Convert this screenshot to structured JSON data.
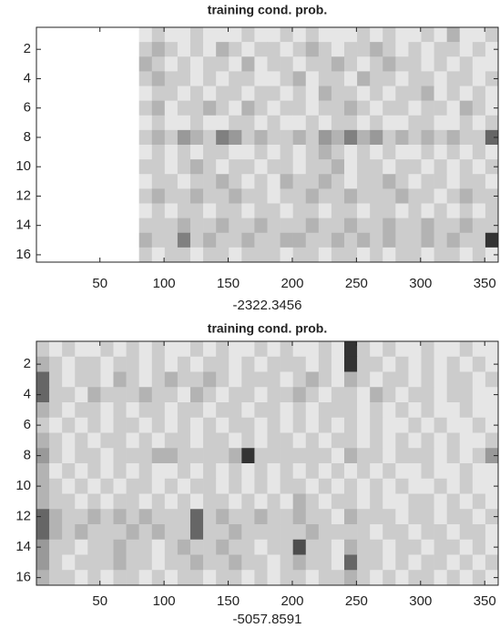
{
  "chart_data": [
    {
      "type": "heatmap",
      "title": "training cond. prob.",
      "xlabel": "-2322.3456",
      "xbins": [
        0.5,
        10.5,
        20.5,
        30.5,
        40.5,
        50.5,
        60.5,
        70.5,
        80.5,
        90.5,
        100.5,
        110.5,
        120.5,
        130.5,
        140.5,
        150.5,
        160.5,
        170.5,
        180.5,
        190.5,
        200.5,
        210.5,
        220.5,
        230.5,
        240.5,
        250.5,
        260.5,
        270.5,
        280.5,
        290.5,
        300.5,
        310.5,
        320.5,
        330.5,
        340.5,
        350.5,
        360.5
      ],
      "y": [
        1,
        2,
        3,
        4,
        5,
        6,
        7,
        8,
        9,
        10,
        11,
        12,
        13,
        14,
        15,
        16
      ],
      "xlim": [
        0.5,
        360.5
      ],
      "ylim": [
        0.5,
        16.5
      ],
      "clim": [
        0,
        10
      ],
      "xticks": [
        50,
        100,
        150,
        200,
        250,
        300,
        350
      ],
      "yticks": [
        2,
        4,
        6,
        8,
        10,
        12,
        14,
        16
      ],
      "values": [
        [
          0,
          0,
          0,
          0,
          0,
          0,
          0,
          0,
          1,
          2,
          1,
          1,
          2,
          1,
          1,
          1,
          2,
          1,
          1,
          2,
          1,
          2,
          1,
          1,
          1,
          2,
          1,
          2,
          1,
          1,
          2,
          1,
          3,
          1,
          1,
          2
        ],
        [
          0,
          0,
          0,
          0,
          0,
          0,
          0,
          0,
          2,
          3,
          2,
          1,
          2,
          1,
          3,
          2,
          1,
          2,
          2,
          1,
          2,
          3,
          2,
          1,
          2,
          2,
          3,
          2,
          1,
          2,
          1,
          2,
          2,
          1,
          2,
          1
        ],
        [
          0,
          0,
          0,
          0,
          0,
          0,
          0,
          0,
          3,
          2,
          1,
          2,
          1,
          2,
          2,
          1,
          3,
          1,
          2,
          2,
          1,
          2,
          2,
          3,
          2,
          1,
          2,
          3,
          2,
          2,
          1,
          2,
          1,
          2,
          1,
          1
        ],
        [
          0,
          0,
          0,
          0,
          0,
          0,
          0,
          0,
          2,
          3,
          2,
          2,
          1,
          2,
          1,
          2,
          2,
          1,
          1,
          2,
          3,
          1,
          2,
          2,
          1,
          3,
          2,
          2,
          1,
          2,
          2,
          1,
          2,
          2,
          1,
          2
        ],
        [
          0,
          0,
          0,
          0,
          0,
          0,
          0,
          0,
          1,
          2,
          2,
          1,
          2,
          1,
          2,
          2,
          1,
          2,
          2,
          1,
          2,
          1,
          3,
          2,
          2,
          1,
          2,
          1,
          2,
          2,
          3,
          1,
          2,
          1,
          2,
          1
        ],
        [
          0,
          0,
          0,
          0,
          0,
          0,
          0,
          0,
          2,
          3,
          1,
          2,
          2,
          3,
          2,
          1,
          3,
          2,
          1,
          2,
          2,
          1,
          2,
          2,
          3,
          2,
          1,
          2,
          2,
          1,
          2,
          2,
          1,
          3,
          2,
          1
        ],
        [
          0,
          0,
          0,
          0,
          0,
          0,
          0,
          0,
          1,
          2,
          1,
          1,
          2,
          1,
          1,
          2,
          2,
          1,
          2,
          1,
          1,
          2,
          1,
          2,
          2,
          1,
          2,
          1,
          1,
          2,
          2,
          1,
          1,
          2,
          1,
          2
        ],
        [
          0,
          0,
          0,
          0,
          0,
          0,
          0,
          0,
          2,
          3,
          2,
          4,
          3,
          2,
          5,
          4,
          2,
          3,
          2,
          2,
          3,
          2,
          4,
          3,
          5,
          3,
          4,
          2,
          3,
          2,
          3,
          2,
          3,
          2,
          2,
          6
        ],
        [
          0,
          0,
          0,
          0,
          0,
          0,
          0,
          0,
          1,
          2,
          1,
          2,
          1,
          2,
          2,
          1,
          1,
          2,
          1,
          2,
          1,
          2,
          3,
          2,
          1,
          2,
          1,
          2,
          1,
          1,
          2,
          1,
          2,
          1,
          2,
          1
        ],
        [
          0,
          0,
          0,
          0,
          0,
          0,
          0,
          0,
          2,
          2,
          1,
          2,
          3,
          2,
          1,
          2,
          2,
          1,
          2,
          2,
          1,
          2,
          2,
          3,
          1,
          2,
          2,
          1,
          2,
          2,
          1,
          2,
          1,
          2,
          1,
          2
        ],
        [
          0,
          0,
          0,
          0,
          0,
          0,
          0,
          0,
          1,
          2,
          2,
          1,
          2,
          2,
          3,
          2,
          1,
          2,
          1,
          3,
          2,
          2,
          3,
          2,
          1,
          2,
          2,
          3,
          2,
          1,
          2,
          2,
          1,
          2,
          2,
          1
        ],
        [
          0,
          0,
          0,
          0,
          0,
          0,
          0,
          0,
          2,
          3,
          2,
          2,
          3,
          2,
          2,
          3,
          2,
          2,
          1,
          2,
          2,
          3,
          2,
          2,
          3,
          2,
          2,
          2,
          3,
          2,
          2,
          1,
          2,
          3,
          2,
          2
        ],
        [
          0,
          0,
          0,
          0,
          0,
          0,
          0,
          0,
          1,
          2,
          1,
          2,
          2,
          1,
          2,
          2,
          1,
          2,
          2,
          1,
          2,
          2,
          1,
          2,
          2,
          1,
          2,
          2,
          1,
          2,
          1,
          2,
          1,
          2,
          1,
          2
        ],
        [
          0,
          0,
          0,
          0,
          0,
          0,
          0,
          0,
          2,
          2,
          2,
          3,
          2,
          2,
          3,
          2,
          2,
          3,
          2,
          2,
          2,
          3,
          2,
          2,
          3,
          2,
          2,
          3,
          2,
          2,
          3,
          2,
          2,
          3,
          2,
          2
        ],
        [
          0,
          0,
          0,
          0,
          0,
          0,
          0,
          0,
          3,
          2,
          2,
          5,
          2,
          3,
          2,
          2,
          3,
          2,
          2,
          3,
          3,
          2,
          2,
          3,
          2,
          3,
          2,
          3,
          2,
          2,
          3,
          2,
          3,
          2,
          2,
          8
        ],
        [
          0,
          0,
          0,
          0,
          0,
          0,
          0,
          0,
          2,
          1,
          2,
          2,
          1,
          2,
          2,
          1,
          2,
          2,
          2,
          1,
          2,
          2,
          1,
          2,
          2,
          1,
          2,
          1,
          2,
          2,
          1,
          2,
          2,
          1,
          2,
          1
        ]
      ]
    },
    {
      "type": "heatmap",
      "title": "training cond. prob.",
      "xlabel": "-5057.8591",
      "xbins": [
        0.5,
        10.5,
        20.5,
        30.5,
        40.5,
        50.5,
        60.5,
        70.5,
        80.5,
        90.5,
        100.5,
        110.5,
        120.5,
        130.5,
        140.5,
        150.5,
        160.5,
        170.5,
        180.5,
        190.5,
        200.5,
        210.5,
        220.5,
        230.5,
        240.5,
        250.5,
        260.5,
        270.5,
        280.5,
        290.5,
        300.5,
        310.5,
        320.5,
        330.5,
        340.5,
        350.5,
        360.5
      ],
      "y": [
        1,
        2,
        3,
        4,
        5,
        6,
        7,
        8,
        9,
        10,
        11,
        12,
        13,
        14,
        15,
        16
      ],
      "xlim": [
        0.5,
        360.5
      ],
      "ylim": [
        0.5,
        16.5
      ],
      "clim": [
        0,
        10
      ],
      "xticks": [
        50,
        100,
        150,
        200,
        250,
        300,
        350
      ],
      "yticks": [
        2,
        4,
        6,
        8,
        10,
        12,
        14,
        16
      ],
      "values": [
        [
          2,
          1,
          2,
          1,
          1,
          2,
          1,
          2,
          1,
          2,
          1,
          1,
          2,
          1,
          2,
          1,
          1,
          2,
          1,
          2,
          1,
          1,
          2,
          1,
          8,
          2,
          1,
          2,
          1,
          1,
          2,
          1,
          1,
          2,
          1,
          1
        ],
        [
          3,
          2,
          1,
          2,
          2,
          1,
          2,
          2,
          1,
          2,
          1,
          2,
          1,
          2,
          2,
          1,
          2,
          1,
          2,
          2,
          2,
          1,
          2,
          1,
          8,
          2,
          2,
          1,
          2,
          1,
          2,
          1,
          2,
          1,
          2,
          1
        ],
        [
          6,
          2,
          1,
          2,
          2,
          1,
          3,
          2,
          1,
          2,
          3,
          2,
          2,
          3,
          2,
          1,
          2,
          2,
          2,
          1,
          2,
          3,
          2,
          1,
          3,
          2,
          1,
          2,
          2,
          1,
          2,
          1,
          2,
          2,
          1,
          2
        ],
        [
          6,
          2,
          2,
          1,
          3,
          2,
          2,
          2,
          3,
          2,
          2,
          1,
          3,
          2,
          1,
          2,
          2,
          1,
          2,
          2,
          3,
          2,
          1,
          2,
          2,
          1,
          3,
          2,
          1,
          2,
          2,
          1,
          2,
          2,
          1,
          1
        ],
        [
          3,
          2,
          1,
          2,
          2,
          1,
          2,
          1,
          2,
          2,
          1,
          2,
          2,
          1,
          2,
          2,
          1,
          2,
          2,
          1,
          2,
          1,
          2,
          2,
          2,
          1,
          2,
          1,
          2,
          1,
          2,
          1,
          1,
          2,
          1,
          1
        ],
        [
          2,
          1,
          2,
          1,
          2,
          1,
          2,
          2,
          1,
          2,
          1,
          2,
          1,
          2,
          1,
          2,
          2,
          1,
          2,
          1,
          2,
          1,
          2,
          1,
          2,
          1,
          2,
          1,
          1,
          2,
          1,
          2,
          1,
          1,
          2,
          1
        ],
        [
          3,
          2,
          1,
          2,
          1,
          2,
          2,
          1,
          2,
          1,
          2,
          2,
          1,
          2,
          2,
          1,
          2,
          1,
          2,
          2,
          1,
          2,
          1,
          2,
          2,
          1,
          2,
          1,
          2,
          1,
          2,
          1,
          2,
          1,
          1,
          2
        ],
        [
          4,
          2,
          1,
          2,
          2,
          1,
          2,
          2,
          2,
          3,
          3,
          2,
          2,
          2,
          2,
          3,
          8,
          2,
          2,
          2,
          2,
          2,
          2,
          1,
          3,
          2,
          2,
          1,
          2,
          2,
          2,
          1,
          2,
          1,
          2,
          4
        ],
        [
          3,
          1,
          2,
          1,
          2,
          1,
          2,
          1,
          2,
          1,
          1,
          2,
          1,
          2,
          1,
          2,
          1,
          2,
          1,
          2,
          1,
          2,
          1,
          2,
          1,
          2,
          1,
          2,
          1,
          1,
          2,
          1,
          1,
          2,
          1,
          1
        ],
        [
          3,
          2,
          1,
          2,
          1,
          2,
          1,
          2,
          2,
          1,
          2,
          1,
          2,
          2,
          1,
          2,
          1,
          2,
          1,
          2,
          2,
          1,
          2,
          1,
          2,
          1,
          2,
          1,
          2,
          1,
          1,
          2,
          1,
          2,
          1,
          1
        ],
        [
          3,
          2,
          2,
          1,
          2,
          1,
          2,
          2,
          1,
          2,
          1,
          2,
          1,
          2,
          2,
          1,
          2,
          1,
          2,
          1,
          3,
          2,
          1,
          2,
          2,
          1,
          2,
          1,
          1,
          2,
          2,
          1,
          2,
          1,
          2,
          1
        ],
        [
          6,
          3,
          2,
          2,
          3,
          2,
          3,
          2,
          3,
          2,
          2,
          2,
          6,
          2,
          3,
          2,
          2,
          3,
          2,
          2,
          3,
          2,
          2,
          1,
          3,
          2,
          2,
          2,
          1,
          2,
          2,
          1,
          2,
          2,
          1,
          2
        ],
        [
          6,
          3,
          2,
          3,
          2,
          2,
          2,
          3,
          2,
          3,
          2,
          2,
          6,
          2,
          2,
          3,
          2,
          2,
          2,
          2,
          2,
          3,
          2,
          2,
          2,
          2,
          1,
          2,
          2,
          1,
          2,
          2,
          1,
          2,
          2,
          1
        ],
        [
          4,
          2,
          2,
          1,
          2,
          2,
          3,
          2,
          2,
          1,
          2,
          3,
          2,
          2,
          3,
          2,
          2,
          1,
          2,
          2,
          7,
          2,
          2,
          1,
          3,
          2,
          2,
          1,
          2,
          2,
          1,
          2,
          2,
          1,
          2,
          1
        ],
        [
          4,
          2,
          1,
          2,
          2,
          2,
          3,
          2,
          2,
          1,
          2,
          2,
          3,
          2,
          2,
          3,
          2,
          2,
          1,
          2,
          3,
          2,
          2,
          1,
          6,
          2,
          2,
          1,
          2,
          1,
          2,
          2,
          1,
          2,
          1,
          2
        ],
        [
          3,
          2,
          2,
          1,
          2,
          1,
          2,
          2,
          1,
          2,
          1,
          2,
          2,
          1,
          2,
          2,
          1,
          2,
          1,
          2,
          2,
          1,
          2,
          2,
          3,
          2,
          1,
          2,
          1,
          2,
          2,
          1,
          2,
          1,
          2,
          1
        ]
      ]
    }
  ]
}
